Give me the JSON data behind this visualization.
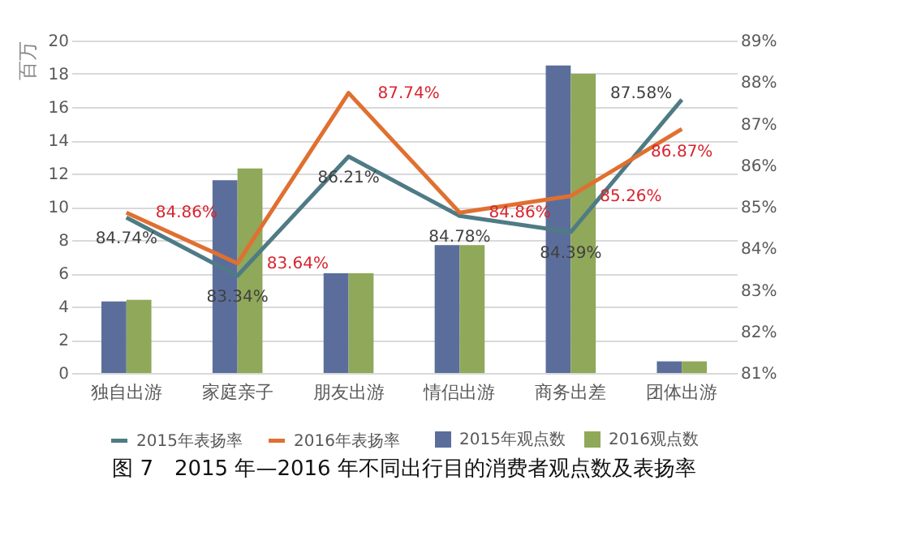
{
  "chart_data": {
    "type": "bar",
    "title": "图 7　2015 年—2016 年不同出行目的消费者观点数及表扬率",
    "ylabel": "百万",
    "categories": [
      "独自出游",
      "家庭亲子",
      "朋友出游",
      "情侣出游",
      "商务出差",
      "团体出游"
    ],
    "series": [
      {
        "name": "2015年观点数",
        "color": "#5b6e9b",
        "values": [
          4.3,
          11.6,
          6.0,
          7.7,
          18.5,
          0.7
        ]
      },
      {
        "name": "2016观点数",
        "color": "#8fa85a",
        "values": [
          4.4,
          12.3,
          6.0,
          7.7,
          18.0,
          0.7
        ]
      },
      {
        "name": "2015年表扬率",
        "type": "line",
        "axis": "y2",
        "color": "#4e7b85",
        "values": [
          84.74,
          83.34,
          86.21,
          84.78,
          84.39,
          87.58
        ],
        "value_labels": [
          "84.74%",
          "83.34%",
          "86.21%",
          "84.78%",
          "84.39%",
          "87.58%"
        ]
      },
      {
        "name": "2016年表扬率",
        "type": "line",
        "axis": "y2",
        "color": "#e07030",
        "values": [
          84.86,
          83.64,
          87.74,
          84.86,
          85.26,
          86.87
        ],
        "value_labels": [
          "84.86%",
          "83.64%",
          "87.74%",
          "84.86%",
          "85.26%",
          "86.87%"
        ]
      }
    ],
    "ylim": [
      0,
      20
    ],
    "yticks": [
      0,
      2,
      4,
      6,
      8,
      10,
      12,
      14,
      16,
      18,
      20
    ],
    "y2lim": [
      81,
      89
    ],
    "y2ticks": [
      {
        "value": 81,
        "label": "81%"
      },
      {
        "value": 82,
        "label": "82%"
      },
      {
        "value": 83,
        "label": "83%"
      },
      {
        "value": 84,
        "label": "84%"
      },
      {
        "value": 85,
        "label": "85%"
      },
      {
        "value": 86,
        "label": "86%"
      },
      {
        "value": 87,
        "label": "87%"
      },
      {
        "value": 88,
        "label": "88%"
      },
      {
        "value": 89,
        "label": "89%"
      }
    ],
    "grid": "y",
    "legend": "bottom"
  }
}
